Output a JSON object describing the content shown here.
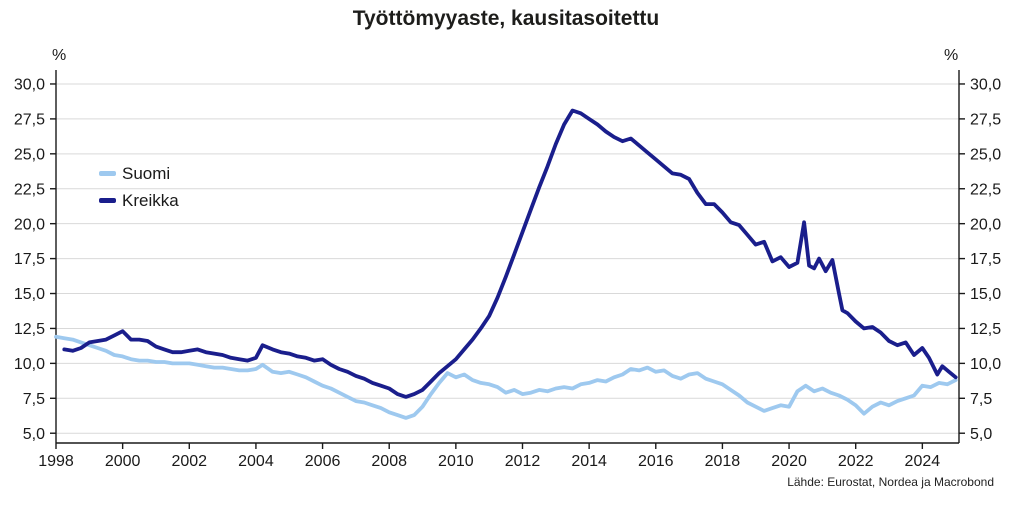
{
  "title": "Työttömyyaste, kausitasoitettu",
  "source": "Lähde: Eurostat, Nordea ja Macrobond",
  "axes": {
    "left_unit": "%",
    "right_unit": "%"
  },
  "legend": [
    {
      "label": "Suomi",
      "color": "#9ec9ef"
    },
    {
      "label": "Kreikka",
      "color": "#1a1e8c"
    }
  ],
  "chart_data": {
    "type": "line",
    "title": "Työttömyyaste, kausitasoitettu",
    "xlabel": "",
    "ylabel": "%",
    "grid": "horizontal",
    "legend_position": "inside-top-left",
    "xlim": [
      1998,
      2025.1
    ],
    "ylim": [
      4.3,
      31.0
    ],
    "x_ticks": [
      1998,
      2000,
      2002,
      2004,
      2006,
      2008,
      2010,
      2012,
      2014,
      2016,
      2018,
      2020,
      2022,
      2024
    ],
    "y_ticks": [
      5,
      7.5,
      10,
      12.5,
      15,
      17.5,
      20,
      22.5,
      25,
      27.5,
      30
    ],
    "y_tick_labels": [
      "5,0",
      "7,5",
      "10,0",
      "12,5",
      "15,0",
      "17,5",
      "20,0",
      "22,5",
      "25,0",
      "27,5",
      "30,0"
    ],
    "series": [
      {
        "name": "Suomi",
        "color": "#9ec9ef",
        "points": [
          [
            1998.0,
            11.9
          ],
          [
            1998.25,
            11.8
          ],
          [
            1998.5,
            11.7
          ],
          [
            1998.75,
            11.5
          ],
          [
            1999.0,
            11.3
          ],
          [
            1999.25,
            11.1
          ],
          [
            1999.5,
            10.9
          ],
          [
            1999.75,
            10.6
          ],
          [
            2000.0,
            10.5
          ],
          [
            2000.25,
            10.3
          ],
          [
            2000.5,
            10.2
          ],
          [
            2000.75,
            10.2
          ],
          [
            2001.0,
            10.1
          ],
          [
            2001.25,
            10.1
          ],
          [
            2001.5,
            10.0
          ],
          [
            2001.75,
            10.0
          ],
          [
            2002.0,
            10.0
          ],
          [
            2002.25,
            9.9
          ],
          [
            2002.5,
            9.8
          ],
          [
            2002.75,
            9.7
          ],
          [
            2003.0,
            9.7
          ],
          [
            2003.25,
            9.6
          ],
          [
            2003.5,
            9.5
          ],
          [
            2003.75,
            9.5
          ],
          [
            2004.0,
            9.6
          ],
          [
            2004.2,
            9.9
          ],
          [
            2004.5,
            9.4
          ],
          [
            2004.75,
            9.3
          ],
          [
            2005.0,
            9.4
          ],
          [
            2005.25,
            9.2
          ],
          [
            2005.5,
            9.0
          ],
          [
            2005.75,
            8.7
          ],
          [
            2006.0,
            8.4
          ],
          [
            2006.25,
            8.2
          ],
          [
            2006.5,
            7.9
          ],
          [
            2006.75,
            7.6
          ],
          [
            2007.0,
            7.3
          ],
          [
            2007.25,
            7.2
          ],
          [
            2007.5,
            7.0
          ],
          [
            2007.75,
            6.8
          ],
          [
            2008.0,
            6.5
          ],
          [
            2008.25,
            6.3
          ],
          [
            2008.5,
            6.1
          ],
          [
            2008.75,
            6.3
          ],
          [
            2009.0,
            6.9
          ],
          [
            2009.25,
            7.8
          ],
          [
            2009.5,
            8.6
          ],
          [
            2009.75,
            9.3
          ],
          [
            2010.0,
            9.0
          ],
          [
            2010.25,
            9.2
          ],
          [
            2010.5,
            8.8
          ],
          [
            2010.75,
            8.6
          ],
          [
            2011.0,
            8.5
          ],
          [
            2011.25,
            8.3
          ],
          [
            2011.5,
            7.9
          ],
          [
            2011.75,
            8.1
          ],
          [
            2012.0,
            7.8
          ],
          [
            2012.25,
            7.9
          ],
          [
            2012.5,
            8.1
          ],
          [
            2012.75,
            8.0
          ],
          [
            2013.0,
            8.2
          ],
          [
            2013.25,
            8.3
          ],
          [
            2013.5,
            8.2
          ],
          [
            2013.75,
            8.5
          ],
          [
            2014.0,
            8.6
          ],
          [
            2014.25,
            8.8
          ],
          [
            2014.5,
            8.7
          ],
          [
            2014.75,
            9.0
          ],
          [
            2015.0,
            9.2
          ],
          [
            2015.25,
            9.6
          ],
          [
            2015.5,
            9.5
          ],
          [
            2015.75,
            9.7
          ],
          [
            2016.0,
            9.4
          ],
          [
            2016.25,
            9.5
          ],
          [
            2016.5,
            9.1
          ],
          [
            2016.75,
            8.9
          ],
          [
            2017.0,
            9.2
          ],
          [
            2017.25,
            9.3
          ],
          [
            2017.5,
            8.9
          ],
          [
            2017.75,
            8.7
          ],
          [
            2018.0,
            8.5
          ],
          [
            2018.25,
            8.1
          ],
          [
            2018.5,
            7.7
          ],
          [
            2018.75,
            7.2
          ],
          [
            2019.0,
            6.9
          ],
          [
            2019.25,
            6.6
          ],
          [
            2019.5,
            6.8
          ],
          [
            2019.75,
            7.0
          ],
          [
            2020.0,
            6.9
          ],
          [
            2020.25,
            8.0
          ],
          [
            2020.5,
            8.4
          ],
          [
            2020.75,
            8.0
          ],
          [
            2021.0,
            8.2
          ],
          [
            2021.25,
            7.9
          ],
          [
            2021.5,
            7.7
          ],
          [
            2021.75,
            7.4
          ],
          [
            2022.0,
            7.0
          ],
          [
            2022.25,
            6.4
          ],
          [
            2022.5,
            6.9
          ],
          [
            2022.75,
            7.2
          ],
          [
            2023.0,
            7.0
          ],
          [
            2023.25,
            7.3
          ],
          [
            2023.5,
            7.5
          ],
          [
            2023.75,
            7.7
          ],
          [
            2024.0,
            8.4
          ],
          [
            2024.25,
            8.3
          ],
          [
            2024.5,
            8.6
          ],
          [
            2024.75,
            8.5
          ],
          [
            2025.0,
            8.8
          ]
        ]
      },
      {
        "name": "Kreikka",
        "color": "#1a1e8c",
        "points": [
          [
            1998.25,
            11.0
          ],
          [
            1998.5,
            10.9
          ],
          [
            1998.75,
            11.1
          ],
          [
            1999.0,
            11.5
          ],
          [
            1999.25,
            11.6
          ],
          [
            1999.5,
            11.7
          ],
          [
            1999.75,
            12.0
          ],
          [
            2000.0,
            12.3
          ],
          [
            2000.25,
            11.7
          ],
          [
            2000.5,
            11.7
          ],
          [
            2000.75,
            11.6
          ],
          [
            2001.0,
            11.2
          ],
          [
            2001.25,
            11.0
          ],
          [
            2001.5,
            10.8
          ],
          [
            2001.75,
            10.8
          ],
          [
            2002.0,
            10.9
          ],
          [
            2002.25,
            11.0
          ],
          [
            2002.5,
            10.8
          ],
          [
            2002.75,
            10.7
          ],
          [
            2003.0,
            10.6
          ],
          [
            2003.25,
            10.4
          ],
          [
            2003.5,
            10.3
          ],
          [
            2003.75,
            10.2
          ],
          [
            2004.0,
            10.4
          ],
          [
            2004.2,
            11.3
          ],
          [
            2004.5,
            11.0
          ],
          [
            2004.75,
            10.8
          ],
          [
            2005.0,
            10.7
          ],
          [
            2005.25,
            10.5
          ],
          [
            2005.5,
            10.4
          ],
          [
            2005.75,
            10.2
          ],
          [
            2006.0,
            10.3
          ],
          [
            2006.25,
            9.9
          ],
          [
            2006.5,
            9.6
          ],
          [
            2006.75,
            9.4
          ],
          [
            2007.0,
            9.1
          ],
          [
            2007.25,
            8.9
          ],
          [
            2007.5,
            8.6
          ],
          [
            2007.75,
            8.4
          ],
          [
            2008.0,
            8.2
          ],
          [
            2008.25,
            7.8
          ],
          [
            2008.5,
            7.6
          ],
          [
            2008.75,
            7.8
          ],
          [
            2009.0,
            8.1
          ],
          [
            2009.25,
            8.7
          ],
          [
            2009.5,
            9.3
          ],
          [
            2009.75,
            9.8
          ],
          [
            2010.0,
            10.3
          ],
          [
            2010.25,
            11.0
          ],
          [
            2010.5,
            11.7
          ],
          [
            2010.75,
            12.5
          ],
          [
            2011.0,
            13.4
          ],
          [
            2011.25,
            14.7
          ],
          [
            2011.5,
            16.2
          ],
          [
            2011.75,
            17.8
          ],
          [
            2012.0,
            19.4
          ],
          [
            2012.25,
            21.0
          ],
          [
            2012.5,
            22.6
          ],
          [
            2012.75,
            24.1
          ],
          [
            2013.0,
            25.7
          ],
          [
            2013.25,
            27.1
          ],
          [
            2013.5,
            28.1
          ],
          [
            2013.75,
            27.9
          ],
          [
            2014.0,
            27.5
          ],
          [
            2014.25,
            27.1
          ],
          [
            2014.5,
            26.6
          ],
          [
            2014.75,
            26.2
          ],
          [
            2015.0,
            25.9
          ],
          [
            2015.25,
            26.1
          ],
          [
            2015.5,
            25.6
          ],
          [
            2015.75,
            25.1
          ],
          [
            2016.0,
            24.6
          ],
          [
            2016.25,
            24.1
          ],
          [
            2016.5,
            23.6
          ],
          [
            2016.75,
            23.5
          ],
          [
            2017.0,
            23.2
          ],
          [
            2017.25,
            22.2
          ],
          [
            2017.5,
            21.4
          ],
          [
            2017.75,
            21.4
          ],
          [
            2018.0,
            20.8
          ],
          [
            2018.25,
            20.1
          ],
          [
            2018.5,
            19.9
          ],
          [
            2018.75,
            19.2
          ],
          [
            2019.0,
            18.5
          ],
          [
            2019.25,
            18.7
          ],
          [
            2019.5,
            17.3
          ],
          [
            2019.75,
            17.6
          ],
          [
            2020.0,
            16.9
          ],
          [
            2020.25,
            17.2
          ],
          [
            2020.45,
            20.1
          ],
          [
            2020.6,
            17.0
          ],
          [
            2020.75,
            16.8
          ],
          [
            2020.9,
            17.5
          ],
          [
            2021.1,
            16.6
          ],
          [
            2021.3,
            17.4
          ],
          [
            2021.5,
            15.0
          ],
          [
            2021.6,
            13.8
          ],
          [
            2021.75,
            13.6
          ],
          [
            2022.0,
            13.0
          ],
          [
            2022.25,
            12.5
          ],
          [
            2022.5,
            12.6
          ],
          [
            2022.75,
            12.2
          ],
          [
            2023.0,
            11.6
          ],
          [
            2023.25,
            11.3
          ],
          [
            2023.5,
            11.5
          ],
          [
            2023.75,
            10.6
          ],
          [
            2024.0,
            11.1
          ],
          [
            2024.2,
            10.4
          ],
          [
            2024.45,
            9.2
          ],
          [
            2024.6,
            9.8
          ],
          [
            2024.8,
            9.4
          ],
          [
            2025.0,
            9.0
          ]
        ]
      }
    ]
  }
}
